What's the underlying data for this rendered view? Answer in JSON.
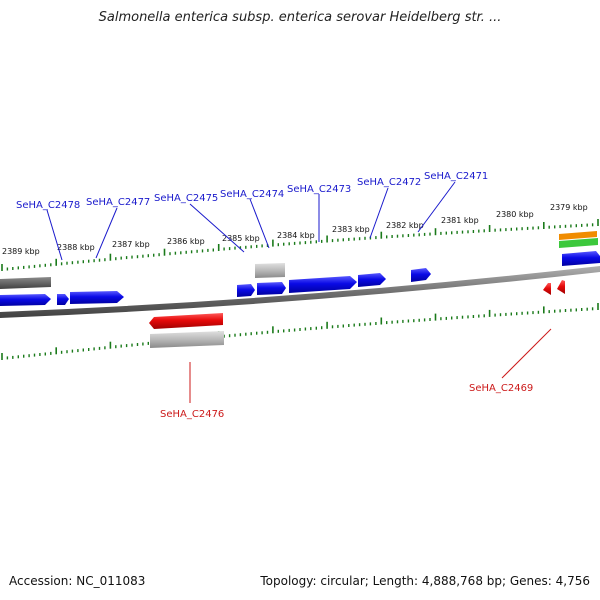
{
  "title": "Salmonella enterica subsp. enterica serovar Heidelberg str. ...",
  "footer": {
    "accession": "Accession: NC_011083",
    "summary": "Topology: circular; Length: 4,888,768 bp; Genes: 4,756"
  },
  "colors": {
    "forward_gene": "#1010e0",
    "reverse_gene": "#e01010",
    "label_forward": "#1a1acc",
    "label_reverse": "#cc1a1a",
    "tick": "#1a7a1a",
    "backbone": "#808080",
    "pseudo_gene": "#6e6e6e",
    "gray_feature": "#b5b5b5",
    "orange_feature": "#f08c00",
    "green_feature": "#44cc44"
  },
  "ticks": [
    "2389 kbp",
    "2388 kbp",
    "2387 kbp",
    "2386 kbp",
    "2385 kbp",
    "2384 kbp",
    "2383 kbp",
    "2382 kbp",
    "2381 kbp",
    "2380 kbp",
    "2379 kbp"
  ],
  "gene_labels_top": [
    "SeHA_C2478",
    "SeHA_C2477",
    "SeHA_C2475",
    "SeHA_C2474",
    "SeHA_C2473",
    "SeHA_C2472",
    "SeHA_C2471"
  ],
  "gene_labels_bottom": [
    "SeHA_C2476",
    "SeHA_C2469"
  ]
}
